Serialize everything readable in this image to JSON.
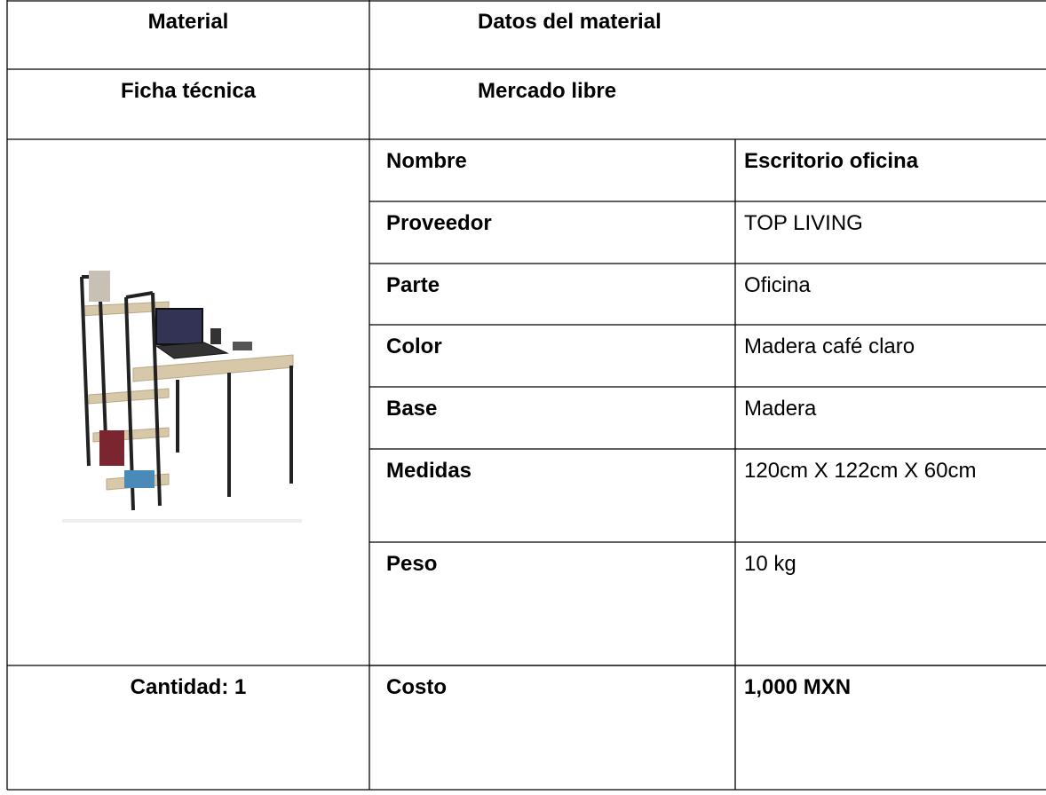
{
  "header": {
    "rows": [
      [
        "Material",
        "Datos del material"
      ],
      [
        "Ficha técnica",
        "Mercado libre"
      ]
    ]
  },
  "table": {
    "rows": [
      [
        "Nombre",
        "Escritorio oficina"
      ],
      [
        "Proveedor",
        "TOP LIVING"
      ],
      [
        "Parte",
        "Oficina"
      ],
      [
        "Color",
        "Madera café claro"
      ],
      [
        "Base",
        "Madera"
      ],
      [
        "Medidas",
        "120cm X 122cm X 60cm"
      ],
      [
        "Peso",
        "10 kg"
      ]
    ]
  },
  "footer": {
    "quantity": "Cantidad: 1",
    "label": "Costo",
    "value": "1,000 MXN"
  }
}
